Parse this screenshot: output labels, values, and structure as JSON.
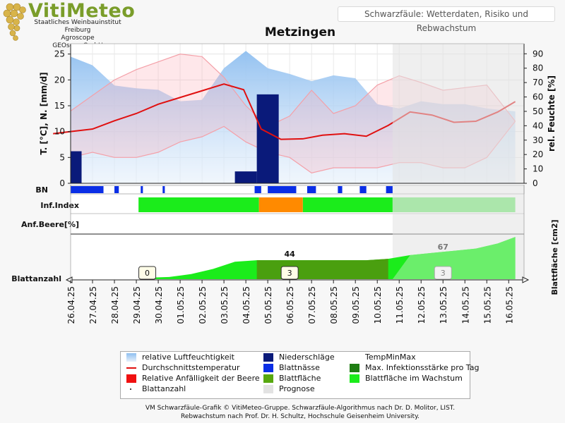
{
  "header": {
    "brand": "VitiMeteo",
    "sub_lines": [
      "Staatliches Weinbauinstitut Freiburg",
      "Agroscope",
      "GEOsens GmbH"
    ],
    "tagline": "Schwarzfäule: Wetterdaten, Risiko und Rebwachstum"
  },
  "chart_data": {
    "type": "line",
    "title": "Metzingen",
    "dates": [
      "26.04.25",
      "27.04.25",
      "28.04.25",
      "29.04.25",
      "30.04.25",
      "01.05.25",
      "02.05.25",
      "03.05.25",
      "04.05.25",
      "05.05.25",
      "06.05.25",
      "07.05.25",
      "08.05.25",
      "09.05.25",
      "10.05.25",
      "11.05.25",
      "12.05.25",
      "13.05.25",
      "14.05.25",
      "15.05.25",
      "16.05.25"
    ],
    "forecast_from": "10.05.25",
    "ylabel_left": "T. [°C], N. [mm/d]",
    "ylabel_right": "rel. Feuchte [%]",
    "ylabel_growth": "Blattfläche [cm2]",
    "ylim_left": [
      0,
      27
    ],
    "yticks_left": [
      0,
      5,
      10,
      15,
      20,
      25
    ],
    "ylim_right": [
      0,
      97
    ],
    "yticks_right": [
      0,
      10,
      20,
      30,
      40,
      50,
      60,
      70,
      80,
      90
    ],
    "grid": true,
    "humidity": {
      "name": "relative Luftfeuchtigkeit",
      "x": [
        0,
        1,
        2,
        3,
        4,
        5,
        6,
        7,
        8,
        9,
        10,
        11,
        12,
        13,
        14,
        15,
        16,
        17,
        18,
        19,
        20.3
      ],
      "values": [
        88,
        82,
        68,
        66,
        65,
        57,
        58,
        80,
        92,
        80,
        76,
        71,
        75,
        73,
        55,
        52,
        57,
        55,
        55,
        52,
        50
      ]
    },
    "temp_mean": {
      "name": "Durchschnittstemperatur",
      "x": [
        -0.8,
        0,
        1,
        2,
        3,
        4,
        5,
        6,
        7,
        7.9,
        8.7,
        9.6,
        10.6,
        11.5,
        12.5,
        13.5,
        14.5,
        15.5,
        16.5,
        17.5,
        18.5,
        19.5,
        20.3
      ],
      "values": [
        9.6,
        10,
        10.5,
        12.1,
        13.5,
        15.3,
        16.6,
        17.9,
        19.2,
        18.1,
        10.5,
        8.5,
        8.6,
        9.3,
        9.6,
        9.1,
        11.2,
        13.8,
        13.2,
        11.8,
        12,
        13.8,
        15.8
      ]
    },
    "temp_minmax": {
      "name": "TempMinMax",
      "x": [
        0,
        1,
        2,
        3,
        4,
        5,
        6,
        7,
        8,
        9,
        10,
        11,
        12,
        13,
        14,
        15,
        16,
        17,
        18,
        19,
        20.3
      ],
      "max": [
        14,
        17,
        20,
        22,
        23.5,
        25,
        24.5,
        20.5,
        15,
        11,
        13,
        18,
        13.5,
        15,
        19,
        20.8,
        19.5,
        18,
        18.5,
        19,
        12
      ],
      "min": [
        5,
        6,
        5,
        5,
        6,
        8,
        9,
        11,
        8,
        6,
        5,
        2,
        3,
        3,
        3,
        4,
        4,
        3,
        3,
        5,
        12
      ]
    },
    "precipitation": {
      "name": "Niederschläge",
      "bars": [
        {
          "x": 0,
          "w": 0.5,
          "value": 6.2
        },
        {
          "x": 7.5,
          "w": 1.0,
          "value": 2.3
        },
        {
          "x": 8.5,
          "w": 1.0,
          "value": 17.2
        }
      ]
    },
    "leaf_wetness": {
      "name": "Blattnässe",
      "intervals": [
        [
          0,
          1.5
        ],
        [
          2,
          2.2
        ],
        [
          3.2,
          3.3
        ],
        [
          4.2,
          4.3
        ],
        [
          8.4,
          8.7
        ],
        [
          9,
          10.3
        ],
        [
          10.8,
          11.2
        ],
        [
          12.2,
          12.4
        ],
        [
          13.2,
          13.5
        ],
        [
          14.4,
          14.7
        ]
      ]
    },
    "infection_index": {
      "green": [
        [
          3.1,
          8.6
        ],
        [
          10.6,
          14.7
        ]
      ],
      "orange": [
        [
          8.6,
          10.6
        ]
      ],
      "forecast_green": [
        [
          14.7,
          20.3
        ]
      ]
    },
    "growth": {
      "name": "Blattfläche",
      "x": [
        3.5,
        4.5,
        5.5,
        6.5,
        7.5,
        8.5,
        9.5,
        10.5,
        11.5,
        12.5,
        13.5,
        14.5,
        15.5,
        16.5,
        17.5,
        18.5,
        19.5,
        20.3
      ],
      "values": [
        2,
        3,
        7,
        14,
        24,
        26,
        26,
        26,
        26,
        26,
        26,
        28,
        33,
        36,
        39,
        42,
        49,
        58
      ],
      "max_infection_range": [
        8.5,
        14.7
      ],
      "labels_top": [
        {
          "x": 10,
          "text": "44"
        },
        {
          "x": 17,
          "text": "67"
        }
      ],
      "leaf_counts": [
        {
          "x": 3.5,
          "text": "0"
        },
        {
          "x": 10,
          "text": "3"
        },
        {
          "x": 17,
          "text": "3"
        }
      ]
    },
    "row_labels": {
      "bn": "BN",
      "inf": "Inf.Index",
      "anf": "Anf.Beere[%]",
      "blatt": "Blattanzahl"
    }
  },
  "legend": [
    {
      "key": "humidity",
      "label": "relative Luftfeuchtigkeit",
      "color": "#a9ccf0"
    },
    {
      "key": "precip",
      "label": "Niederschläge",
      "color": "#0a1a7a"
    },
    {
      "key": "minmax",
      "label": "TempMinMax",
      "color": ""
    },
    {
      "key": "temp",
      "label": "Durchschnittstemperatur",
      "color": "#e01010"
    },
    {
      "key": "wet",
      "label": "Blattnässe",
      "color": "#0a2ee6"
    },
    {
      "key": "maxinf",
      "label": "Max. Infektionsstärke pro Tag",
      "color": "#1e7d12"
    },
    {
      "key": "berry",
      "label": "Relative Anfälligkeit der Beere",
      "color": "#f01010"
    },
    {
      "key": "leaf",
      "label": "Blattfläche",
      "color": "#57a80f"
    },
    {
      "key": "leafgrow",
      "label": "Blattfläche im Wachstum",
      "color": "#1bec1b"
    },
    {
      "key": "leafcount",
      "label": "Blattanzahl",
      "color": "#444444"
    },
    {
      "key": "forecast",
      "label": "Prognose",
      "color": "#e2e2e2"
    }
  ],
  "footer": [
    "VM Schwarzfäule-Grafik © VitiMeteo-Gruppe. Schwarzfäule-Algorithmus nach Dr. D. Molitor, LIST.",
    "Rebwachstum nach Prof. Dr. H. Schultz, Hochschule Geisenheim University."
  ]
}
